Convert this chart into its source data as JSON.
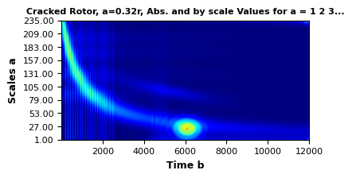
{
  "title": "Cracked Rotor, a=0.32r, Abs. and by scale Values for a = 1 2 3...",
  "xlabel": "Time b",
  "ylabel": "Scales a",
  "xlim": [
    0,
    12000
  ],
  "ylim": [
    1,
    235
  ],
  "xticks": [
    2000,
    4000,
    6000,
    8000,
    10000,
    12000
  ],
  "yticks": [
    1.0,
    27.0,
    53.0,
    79.0,
    105.0,
    131.0,
    157.0,
    183.0,
    209.0,
    235.0
  ],
  "cmap": "jet",
  "n_time": 800,
  "n_scale": 300,
  "scale_min": 1,
  "scale_max": 235,
  "time_min": 0,
  "time_max": 12000,
  "title_fontsize": 8,
  "label_fontsize": 9,
  "tick_fontsize": 8
}
